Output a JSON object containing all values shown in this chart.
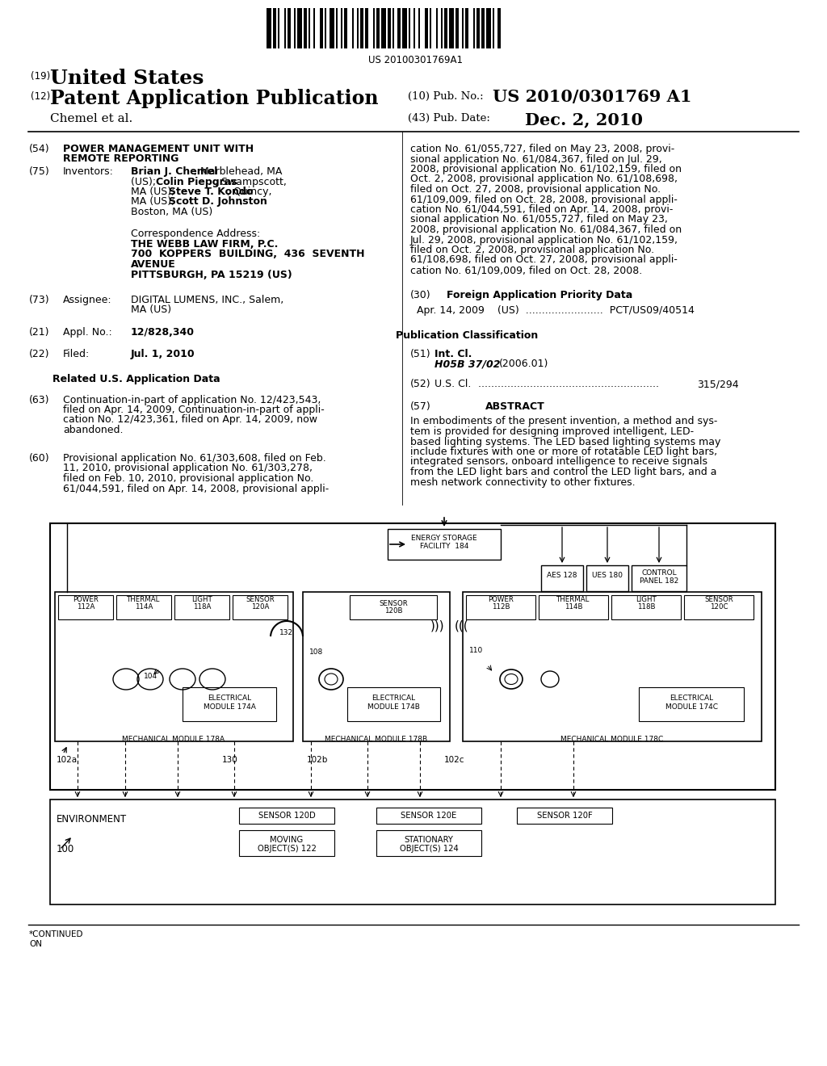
{
  "bg_color": "#ffffff",
  "barcode_text": "US 20100301769A1",
  "pub_no": "US 2010/0301769 A1",
  "pub_date": "Dec. 2, 2010",
  "applicant": "Chemel et al.",
  "field54_title1": "POWER MANAGEMENT UNIT WITH",
  "field54_title2": "REMOTE REPORTING",
  "inv_line1_plain1": "Brian J. Chemel",
  "inv_line1_plain2": ", Marblehead, MA",
  "inv_line2_plain1": "(US); ",
  "inv_line2_bold": "Colin Piepgras",
  "inv_line2_plain2": ", Swampscott,",
  "inv_line3_plain1": "MA (US); ",
  "inv_line3_bold": "Steve T. Kondo",
  "inv_line3_plain2": ", Quincy,",
  "inv_line4_plain1": "MA (US); ",
  "inv_line4_bold": "Scott D. Johnston",
  "inv_line4_plain2": ",",
  "inv_line5": "Boston, MA (US)",
  "corr_label": "Correspondence Address:",
  "corr_firm": "THE WEBB LAW FIRM, P.C.",
  "corr_addr1": "700  KOPPERS  BUILDING,  436  SEVENTH",
  "corr_addr2": "AVENUE",
  "corr_addr3": "PITTSBURGH, PA 15219 (US)",
  "assignee_line1": "DIGITAL LUMENS, INC., Salem,",
  "assignee_line2": "MA (US)",
  "appl_no": "12/828,340",
  "filed": "Jul. 1, 2010",
  "related_header": "Related U.S. Application Data",
  "field63_lines": [
    "Continuation-in-part of application No. 12/423,543,",
    "filed on Apr. 14, 2009, Continuation-in-part of appli-",
    "cation No. 12/423,361, filed on Apr. 14, 2009, now",
    "abandoned."
  ],
  "field60_lines": [
    "Provisional application No. 61/303,608, filed on Feb.",
    "11, 2010, provisional application No. 61/303,278,",
    "filed on Feb. 10, 2010, provisional application No.",
    "61/044,591, filed on Apr. 14, 2008, provisional appli-"
  ],
  "right_top_lines": [
    "cation No. 61/055,727, filed on May 23, 2008, provi-",
    "sional application No. 61/084,367, filed on Jul. 29,",
    "2008, provisional application No. 61/102,159, filed on",
    "Oct. 2, 2008, provisional application No. 61/108,698,",
    "filed on Oct. 27, 2008, provisional application No.",
    "61/109,009, filed on Oct. 28, 2008, provisional appli-",
    "cation No. 61/044,591, filed on Apr. 14, 2008, provi-",
    "sional application No. 61/055,727, filed on May 23,",
    "2008, provisional application No. 61/084,367, filed on",
    "Jul. 29, 2008, provisional application No. 61/102,159,",
    "filed on Oct. 2, 2008, provisional application No.",
    "61/108,698, filed on Oct. 27, 2008, provisional appli-",
    "cation No. 61/109,009, filed on Oct. 28, 2008."
  ],
  "field30_header": "Foreign Application Priority Data",
  "field30_text": "Apr. 14, 2009    (US)  ........................  PCT/US09/40514",
  "pub_class_header": "Publication Classification",
  "int_cl_val": "H05B 37/02",
  "int_cl_year": "(2006.01)",
  "us_cl_val": "315/294",
  "abstract_header": "ABSTRACT",
  "abstract_lines": [
    "In embodiments of the present invention, a method and sys-",
    "tem is provided for designing improved intelligent, LED-",
    "based lighting systems. The LED based lighting systems may",
    "include fixtures with one or more of rotatable LED light bars,",
    "integrated sensors, onboard intelligence to receive signals",
    "from the LED light bars and control the LED light bars, and a",
    "mesh network connectivity to other fixtures."
  ]
}
